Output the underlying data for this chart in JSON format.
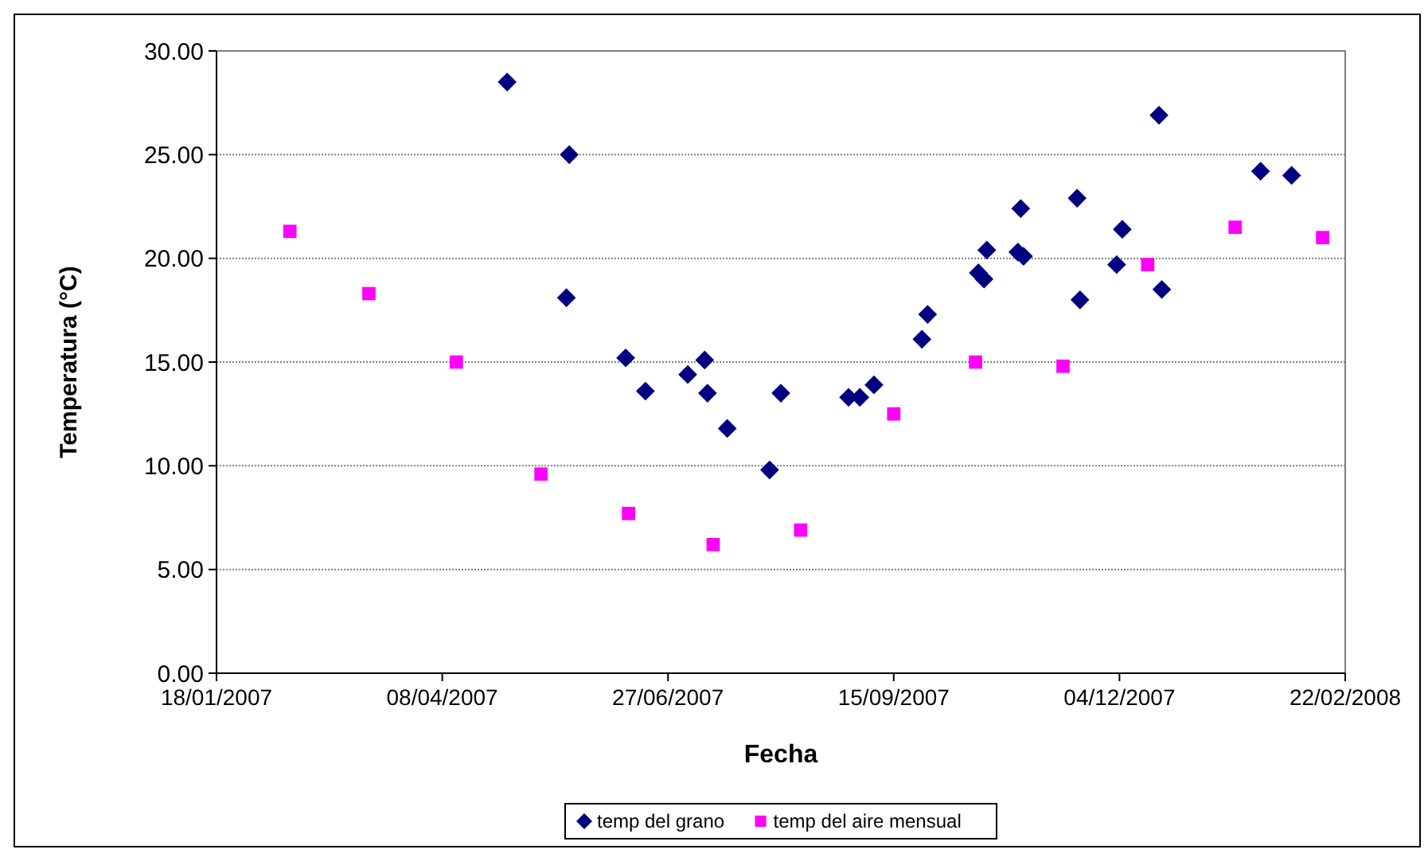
{
  "chart_data": {
    "type": "scatter",
    "xlabel": "Fecha",
    "ylabel": "Temperatura (°C)",
    "xlim": [
      "2007-01-18",
      "2008-02-22"
    ],
    "xticks": [
      {
        "value": "2007-01-18",
        "label": "18/01/2007"
      },
      {
        "value": "2007-04-08",
        "label": "08/04/2007"
      },
      {
        "value": "2007-06-27",
        "label": "27/06/2007"
      },
      {
        "value": "2007-09-15",
        "label": "15/09/2007"
      },
      {
        "value": "2007-12-04",
        "label": "04/12/2007"
      },
      {
        "value": "2008-02-22",
        "label": "22/02/2008"
      }
    ],
    "ylim": [
      0,
      30
    ],
    "yticks": [
      {
        "value": 0,
        "label": "0.00"
      },
      {
        "value": 5,
        "label": "5.00"
      },
      {
        "value": 10,
        "label": "10.00"
      },
      {
        "value": 15,
        "label": "15.00"
      },
      {
        "value": 20,
        "label": "20.00"
      },
      {
        "value": 25,
        "label": "25.00"
      },
      {
        "value": 30,
        "label": "30.00"
      }
    ],
    "grid": "y",
    "legend": "bottom",
    "series": [
      {
        "name": "temp del grano",
        "color": "#000080",
        "marker": "diamond",
        "x": [
          "2007-05-01",
          "2007-05-23",
          "2007-05-22",
          "2007-06-12",
          "2007-06-19",
          "2007-07-04",
          "2007-07-10",
          "2007-07-11",
          "2007-07-18",
          "2007-08-02",
          "2007-08-06",
          "2007-08-30",
          "2007-09-03",
          "2007-09-08",
          "2007-09-25",
          "2007-09-27",
          "2007-10-15",
          "2007-10-17",
          "2007-10-18",
          "2007-10-29",
          "2007-10-30",
          "2007-10-31",
          "2007-11-19",
          "2007-11-20",
          "2007-12-03",
          "2007-12-05",
          "2007-12-18",
          "2007-12-19",
          "2008-01-23",
          "2008-02-03"
        ],
        "values": [
          28.5,
          25.0,
          18.1,
          15.2,
          13.6,
          14.4,
          15.1,
          13.5,
          11.8,
          9.8,
          13.5,
          13.3,
          13.3,
          13.9,
          16.1,
          17.3,
          19.3,
          19.0,
          20.4,
          20.3,
          22.4,
          20.1,
          22.9,
          18.0,
          19.7,
          21.4,
          26.9,
          18.5,
          24.2,
          24.0
        ]
      },
      {
        "name": "temp del aire mensual",
        "color": "#ff00ff",
        "marker": "square",
        "x": [
          "2007-02-13",
          "2007-03-13",
          "2007-04-13",
          "2007-05-13",
          "2007-06-13",
          "2007-07-13",
          "2007-08-13",
          "2007-09-15",
          "2007-10-14",
          "2007-11-14",
          "2007-12-14",
          "2008-01-14",
          "2008-02-14"
        ],
        "values": [
          21.3,
          18.3,
          15.0,
          9.6,
          7.7,
          6.2,
          6.9,
          12.5,
          15.0,
          14.8,
          19.7,
          21.5,
          21.0
        ]
      }
    ]
  }
}
